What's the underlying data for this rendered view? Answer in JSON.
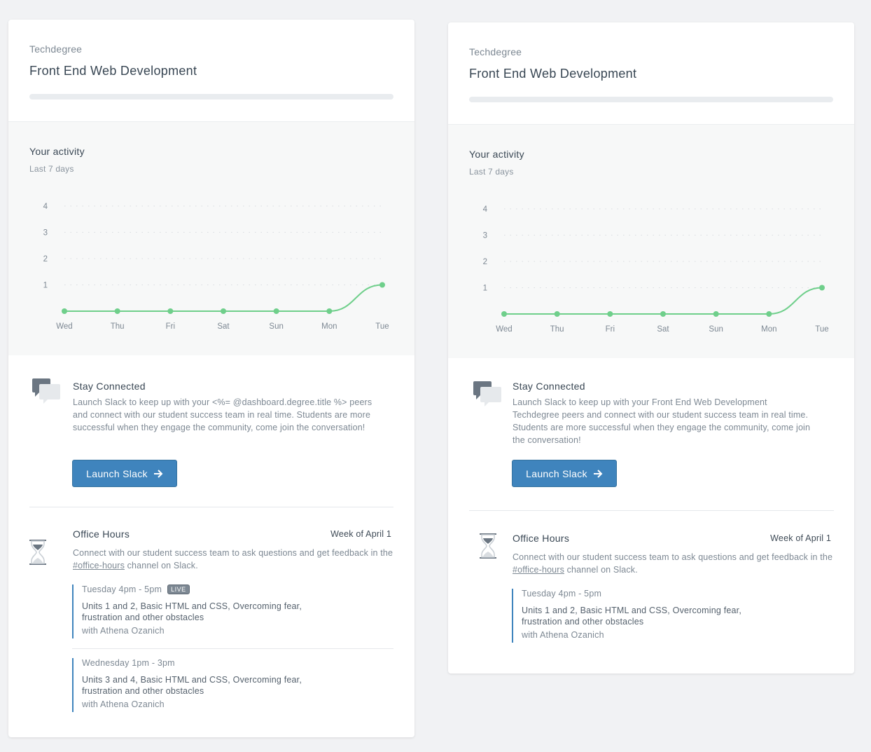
{
  "colors": {
    "accent": "#3f84bd",
    "chart_line": "#6fcf8b",
    "background": "#f1f2f4"
  },
  "cards": [
    {
      "track_label": "Techdegree",
      "track_title": "Front End Web Development",
      "activity": {
        "title": "Your activity",
        "subtitle": "Last 7 days"
      },
      "connect": {
        "title": "Stay Connected",
        "text": "Launch Slack to keep up with your <%= @dashboard.degree.title %> peers and connect with our student success team in real time. Students are more successful when they engage the community, come join the conversation!",
        "button_label": "Launch Slack",
        "icon": "chat-bubbles-icon"
      },
      "office_hours": {
        "title": "Office Hours",
        "week": "Week of April 1",
        "text_prefix": "Connect with our student success team to ask questions and get feedback in the ",
        "channel_link": "#office-hours",
        "text_suffix": " channel on Slack.",
        "icon": "hourglass-icon",
        "sessions": [
          {
            "time": "Tuesday 4pm - 5pm",
            "badge": "LIVE",
            "topic": "Units 1 and 2, Basic HTML and CSS, Overcoming fear, frustration and other obstacles",
            "host": "with Athena Ozanich"
          },
          {
            "time": "Wednesday 1pm - 3pm",
            "topic": "Units 3 and 4, Basic HTML and CSS, Overcoming fear, frustration and other obstacles",
            "host": "with Athena Ozanich"
          }
        ]
      }
    },
    {
      "track_label": "Techdegree",
      "track_title": "Front End Web Development",
      "activity": {
        "title": "Your activity",
        "subtitle": "Last 7 days"
      },
      "connect": {
        "title": "Stay Connected",
        "text": "Launch Slack to keep up with your Front End Web Development Techdegree peers and connect with our student success team in real time. Students are more successful when they engage the community, come join the conversation!",
        "button_label": "Launch Slack",
        "icon": "chat-bubbles-icon"
      },
      "office_hours": {
        "title": "Office Hours",
        "week": "Week of April 1",
        "text_prefix": "Connect with our student success team to ask questions and get feedback in the ",
        "channel_link": "#office-hours",
        "text_suffix": " channel on Slack.",
        "icon": "hourglass-icon",
        "sessions": [
          {
            "time": "Tuesday 4pm - 5pm",
            "topic": "Units 1 and 2, Basic HTML and CSS, Overcoming fear, frustration and other obstacles",
            "host": "with Athena Ozanich"
          }
        ]
      }
    }
  ],
  "chart_data": [
    {
      "type": "line",
      "title": "Your activity",
      "subtitle": "Last 7 days",
      "categories": [
        "Wed",
        "Thu",
        "Fri",
        "Sat",
        "Sun",
        "Mon",
        "Tue"
      ],
      "values": [
        0,
        0,
        0,
        0,
        0,
        0,
        1
      ],
      "yticks": [
        1,
        2,
        3,
        4
      ],
      "ylim": [
        0,
        4
      ],
      "grid": "dotted horizontal",
      "legend": "none"
    },
    {
      "type": "line",
      "title": "Your activity",
      "subtitle": "Last 7 days",
      "categories": [
        "Wed",
        "Thu",
        "Fri",
        "Sat",
        "Sun",
        "Mon",
        "Tue"
      ],
      "values": [
        0,
        0,
        0,
        0,
        0,
        0,
        1
      ],
      "yticks": [
        1,
        2,
        3,
        4
      ],
      "ylim": [
        0,
        4
      ],
      "grid": "dotted horizontal",
      "legend": "none"
    }
  ]
}
